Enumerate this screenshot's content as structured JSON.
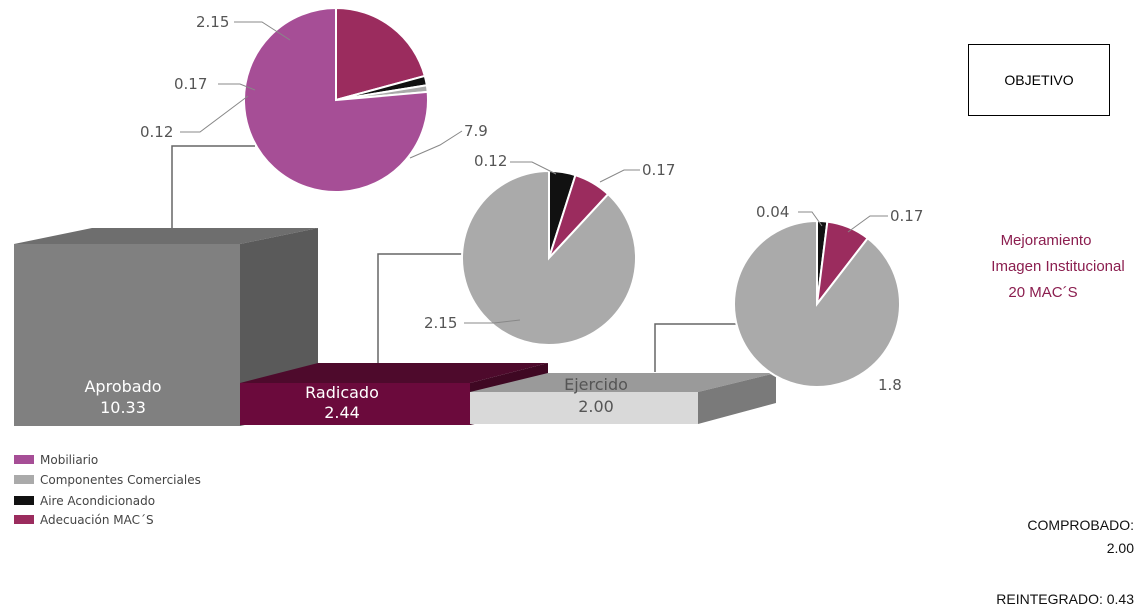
{
  "objective_label": "OBJETIVO",
  "side_lines": [
    "Mejoramiento",
    "Imagen Institucional",
    "20 MAC´S"
  ],
  "comprobado_label": "COMPROBADO:",
  "comprobado_value": "2.00",
  "reintegrado": "REINTEGRADO: 0.43",
  "chart_data": {
    "type": "pie",
    "legend": [
      {
        "name": "Mobiliario",
        "color": "#a64e96"
      },
      {
        "name": "Componentes Comerciales",
        "color": "#aaaaaa"
      },
      {
        "name": "Aire Acondicionado",
        "color": "#111111"
      },
      {
        "name": "Adecuación MAC´S",
        "color": "#9b2c5e"
      }
    ],
    "bars": [
      {
        "name": "Aprobado",
        "value": "10.33",
        "color": "#808080"
      },
      {
        "name": "Radicado",
        "value": "2.44",
        "color": "#6b0a3c"
      },
      {
        "name": "Ejercido",
        "value": "2.00",
        "color": "#d9d9d9"
      }
    ],
    "pies": [
      {
        "bar": "Aprobado",
        "slices": [
          {
            "label": "7.9",
            "value": 7.9,
            "color": "#a64e96"
          },
          {
            "label": "0.12",
            "value": 0.12,
            "color": "#aaaaaa"
          },
          {
            "label": "0.17",
            "value": 0.17,
            "color": "#111111"
          },
          {
            "label": "2.15",
            "value": 2.15,
            "color": "#9b2c5e"
          }
        ]
      },
      {
        "bar": "Radicado",
        "slices": [
          {
            "label": "2.15",
            "value": 2.15,
            "color": "#aaaaaa"
          },
          {
            "label": "0.12",
            "value": 0.12,
            "color": "#111111"
          },
          {
            "label": "0.17",
            "value": 0.17,
            "color": "#9b2c5e"
          }
        ]
      },
      {
        "bar": "Ejercido",
        "slices": [
          {
            "label": "1.8",
            "value": 1.8,
            "color": "#aaaaaa"
          },
          {
            "label": "0.04",
            "value": 0.04,
            "color": "#111111"
          },
          {
            "label": "0.17",
            "value": 0.17,
            "color": "#9b2c5e"
          }
        ]
      }
    ]
  }
}
